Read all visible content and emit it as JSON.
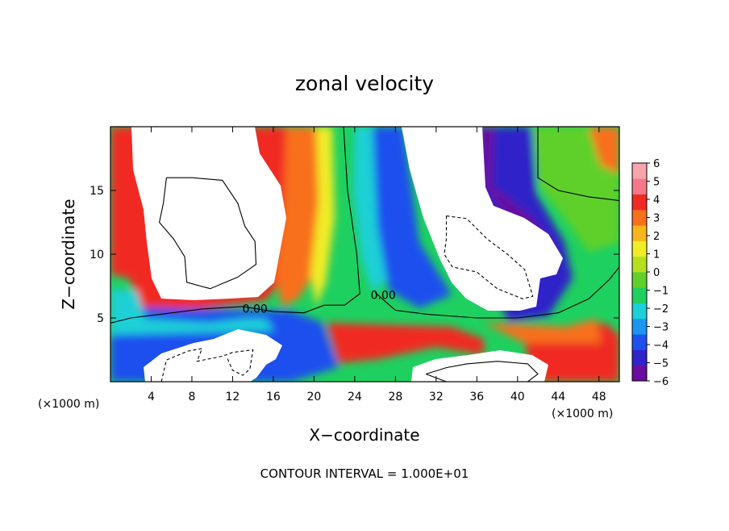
{
  "chart_data": {
    "type": "heatmap",
    "title": "zonal velocity",
    "xlabel": "X−coordinate",
    "ylabel": "Z−coordinate",
    "x_unit": "(×1000 m)",
    "y_unit": "(×1000 m)",
    "xlim": [
      0,
      50
    ],
    "ylim": [
      0,
      20
    ],
    "x_ticks": [
      {
        "value": 4,
        "label": "4"
      },
      {
        "value": 8,
        "label": "8"
      },
      {
        "value": 12,
        "label": "12"
      },
      {
        "value": 16,
        "label": "16"
      },
      {
        "value": 20,
        "label": "20"
      },
      {
        "value": 24,
        "label": "24"
      },
      {
        "value": 28,
        "label": "28"
      },
      {
        "value": 32,
        "label": "32"
      },
      {
        "value": 36,
        "label": "36"
      },
      {
        "value": 40,
        "label": "40"
      },
      {
        "value": 44,
        "label": "44"
      },
      {
        "value": 48,
        "label": "48"
      }
    ],
    "y_ticks": [
      {
        "value": 5,
        "label": "5"
      },
      {
        "value": 10,
        "label": "10"
      },
      {
        "value": 15,
        "label": "15"
      }
    ],
    "colorbar": {
      "range": [
        -6,
        6
      ],
      "ticks": [
        {
          "value": 6,
          "label": "6"
        },
        {
          "value": 5,
          "label": "5"
        },
        {
          "value": 4,
          "label": "4"
        },
        {
          "value": 3,
          "label": "3"
        },
        {
          "value": 2,
          "label": "2"
        },
        {
          "value": 1,
          "label": "1"
        },
        {
          "value": 0,
          "label": "0"
        },
        {
          "value": -1,
          "label": "−1"
        },
        {
          "value": -2,
          "label": "−2"
        },
        {
          "value": -3,
          "label": "−3"
        },
        {
          "value": -4,
          "label": "−4"
        },
        {
          "value": -5,
          "label": "−5"
        },
        {
          "value": -6,
          "label": "−6"
        }
      ],
      "colors": [
        "#6a0d9e",
        "#2f22c8",
        "#1e50ee",
        "#1c96f0",
        "#1bd0d6",
        "#1ed060",
        "#5fd02a",
        "#b4e01e",
        "#f0ec26",
        "#f7b61c",
        "#f8701c",
        "#f02a22",
        "#f57888",
        "#f7a4ac"
      ]
    },
    "contour_interval": "CONTOUR INTERVAL = 1.000E+01",
    "contour_labels": [
      {
        "text": "0.00",
        "x": 14.2,
        "z": 5.4
      },
      {
        "text": "0.00",
        "x": 26.8,
        "z": 6.5
      }
    ],
    "white_regions_out_of_range": [
      {
        "id": "upper-left",
        "x": [
          2,
          18.5
        ],
        "z": [
          6.2,
          20
        ]
      },
      {
        "id": "upper-right",
        "x": [
          28,
          45
        ],
        "z": [
          5.6,
          20
        ]
      },
      {
        "id": "lower-left",
        "x": [
          5,
          17
        ],
        "z": [
          0,
          3
        ]
      },
      {
        "id": "lower-right",
        "x": [
          32,
          43
        ],
        "z": [
          0,
          2.6
        ]
      }
    ],
    "contours": [
      {
        "id": "zero-contour-main",
        "style": "solid",
        "points": [
          [
            0,
            4.6
          ],
          [
            2,
            5.0
          ],
          [
            5,
            5.3
          ],
          [
            9,
            5.7
          ],
          [
            13,
            5.9
          ],
          [
            16,
            5.5
          ],
          [
            19,
            5.4
          ],
          [
            21,
            6.0
          ],
          [
            23,
            6.0
          ],
          [
            24.5,
            6.9
          ],
          [
            24.2,
            10
          ],
          [
            23.3,
            15
          ],
          [
            22.9,
            20
          ]
        ]
      },
      {
        "id": "zero-contour-right",
        "style": "solid",
        "points": [
          [
            26,
            7
          ],
          [
            28,
            5.6
          ],
          [
            31,
            5.3
          ],
          [
            36,
            5.0
          ],
          [
            40,
            5.0
          ],
          [
            44,
            5.4
          ],
          [
            47,
            6.5
          ],
          [
            49,
            8.0
          ],
          [
            50,
            9.0
          ]
        ]
      },
      {
        "id": "zero-contour-topright",
        "style": "solid",
        "points": [
          [
            42,
            20
          ],
          [
            42,
            16
          ],
          [
            44,
            15
          ],
          [
            47,
            14.5
          ],
          [
            50,
            14.2
          ]
        ]
      },
      {
        "id": "closed-contour-upper-left",
        "style": "solid",
        "points": [
          [
            5.5,
            16
          ],
          [
            8,
            16.0
          ],
          [
            11,
            15.8
          ],
          [
            12.5,
            14
          ],
          [
            13.2,
            12.2
          ],
          [
            14.2,
            11
          ],
          [
            14.3,
            9.2
          ],
          [
            12.5,
            8.2
          ],
          [
            9.8,
            7.3
          ],
          [
            7.5,
            7.8
          ],
          [
            7.3,
            9.8
          ],
          [
            6.2,
            11.2
          ],
          [
            4.8,
            12.5
          ],
          [
            5.2,
            14
          ],
          [
            5.5,
            16
          ]
        ]
      },
      {
        "id": "dashed-contour-upper-right",
        "style": "dashed",
        "points": [
          [
            33,
            13
          ],
          [
            35,
            12.8
          ],
          [
            37,
            11.2
          ],
          [
            39,
            10
          ],
          [
            40.7,
            8.8
          ],
          [
            41.5,
            6.7
          ],
          [
            40.5,
            6.5
          ],
          [
            38,
            7.3
          ],
          [
            36,
            8.6
          ],
          [
            33.6,
            9.0
          ],
          [
            32.8,
            10.0
          ],
          [
            33.0,
            11.2
          ],
          [
            33,
            13
          ]
        ]
      },
      {
        "id": "dashed-contour-lower-left",
        "style": "dashed",
        "points": [
          [
            5,
            0
          ],
          [
            5.5,
            1.7
          ],
          [
            7.6,
            2.4
          ],
          [
            9,
            2.6
          ],
          [
            8.5,
            1.6
          ],
          [
            11,
            2.0
          ],
          [
            12,
            2.3
          ],
          [
            14,
            2.5
          ],
          [
            13.7,
            1.0
          ],
          [
            13,
            0.5
          ],
          [
            12,
            0.9
          ],
          [
            11.5,
            1.8
          ]
        ]
      },
      {
        "id": "closed-contour-lower-right",
        "style": "solid",
        "points": [
          [
            31,
            0.6
          ],
          [
            33,
            1.1
          ],
          [
            35,
            1.4
          ],
          [
            38,
            1.6
          ],
          [
            41,
            1.4
          ],
          [
            42,
            0.6
          ],
          [
            41,
            0
          ],
          [
            33,
            0
          ],
          [
            31,
            0.6
          ]
        ]
      }
    ]
  }
}
